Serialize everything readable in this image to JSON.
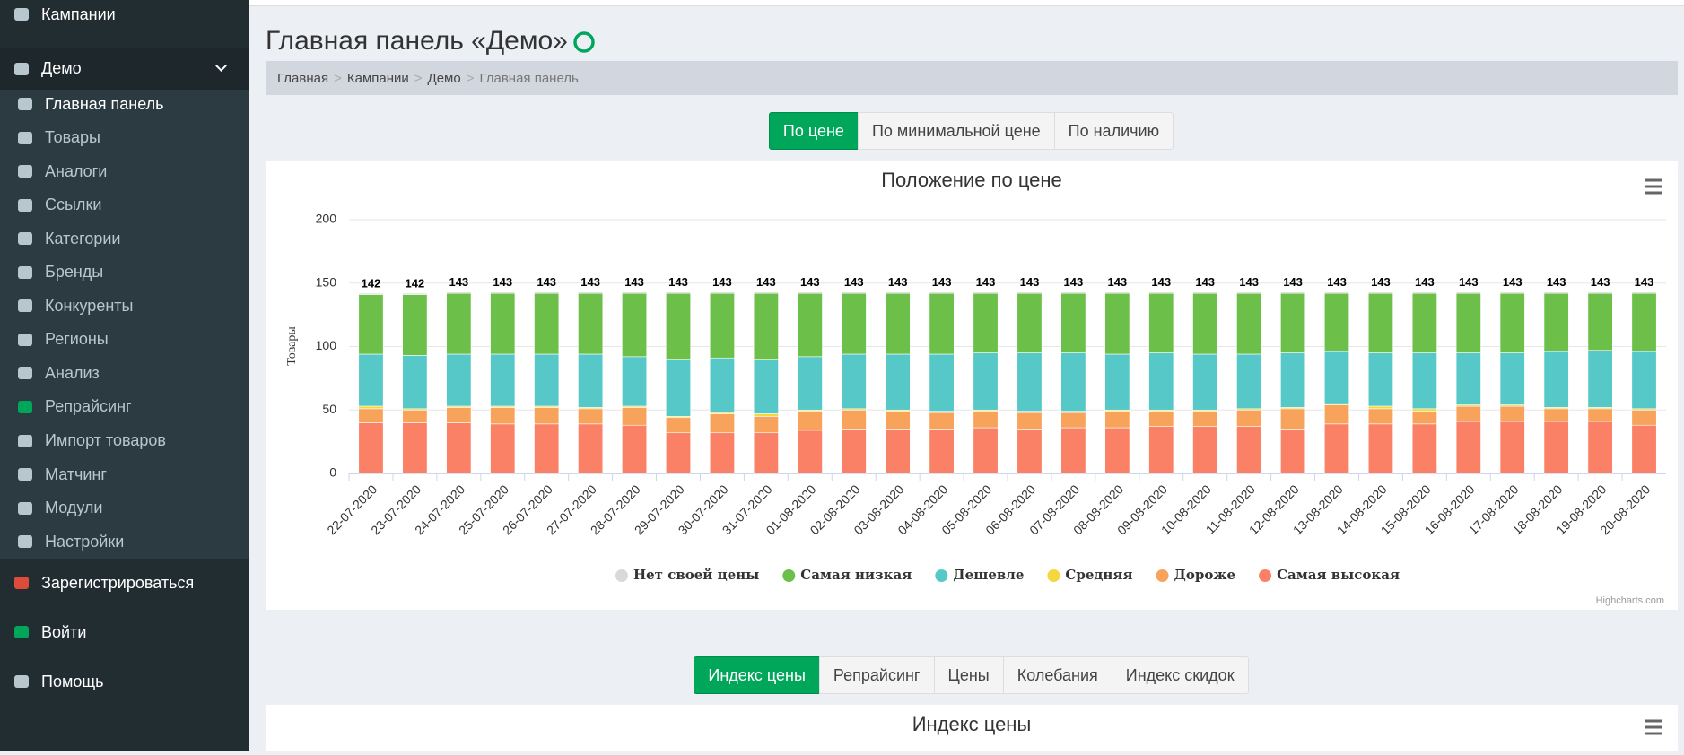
{
  "sidebar": {
    "top_item": "Кампании",
    "group": "Демо",
    "items": [
      "Главная панель",
      "Товары",
      "Аналоги",
      "Ссылки",
      "Категории",
      "Бренды",
      "Конкуренты",
      "Регионы",
      "Анализ",
      "Репрайсинг",
      "Импорт товаров",
      "Матчинг",
      "Модули",
      "Настройки"
    ],
    "bottom_items": [
      "Зарегистрироваться",
      "Войти",
      "Помощь"
    ]
  },
  "header": {
    "title": "Главная панель «Демо»"
  },
  "breadcrumb": {
    "items": [
      "Главная",
      "Кампании",
      "Демо",
      "Главная панель"
    ],
    "separator": ">"
  },
  "tabs": [
    "По цене",
    "По минимальной цене",
    "По наличию"
  ],
  "chart_data": {
    "type": "bar",
    "stacked": true,
    "title": "Положение по цене",
    "y_label": "Товары",
    "categories": [
      "22-07-2020",
      "23-07-2020",
      "24-07-2020",
      "25-07-2020",
      "26-07-2020",
      "27-07-2020",
      "28-07-2020",
      "29-07-2020",
      "30-07-2020",
      "31-07-2020",
      "01-08-2020",
      "02-08-2020",
      "03-08-2020",
      "04-08-2020",
      "05-08-2020",
      "06-08-2020",
      "07-08-2020",
      "08-08-2020",
      "09-08-2020",
      "10-08-2020",
      "11-08-2020",
      "12-08-2020",
      "13-08-2020",
      "14-08-2020",
      "15-08-2020",
      "16-08-2020",
      "17-08-2020",
      "18-08-2020",
      "19-08-2020",
      "20-08-2020"
    ],
    "series": [
      {
        "name": "Нет своей цены",
        "color": "#d9d9d9",
        "values": [
          1,
          1,
          1,
          1,
          1,
          1,
          1,
          1,
          1,
          1,
          1,
          1,
          1,
          1,
          1,
          1,
          1,
          1,
          1,
          1,
          1,
          1,
          1,
          1,
          1,
          1,
          1,
          1,
          1,
          1
        ]
      },
      {
        "name": "Самая низкая",
        "color": "#6cc04a",
        "values": [
          47,
          48,
          48,
          48,
          48,
          48,
          50,
          52,
          51,
          52,
          50,
          48,
          48,
          48,
          47,
          47,
          47,
          48,
          47,
          48,
          48,
          47,
          46,
          47,
          47,
          47,
          47,
          46,
          45,
          46
        ]
      },
      {
        "name": "Дешевле",
        "color": "#56c8c8",
        "values": [
          41,
          42,
          41,
          41,
          41,
          42,
          39,
          45,
          43,
          43,
          42,
          43,
          44,
          45,
          45,
          46,
          46,
          44,
          45,
          44,
          43,
          43,
          41,
          42,
          44,
          41,
          41,
          44,
          45,
          45
        ]
      },
      {
        "name": "Средняя",
        "color": "#f5d63d",
        "values": [
          2,
          1,
          1,
          1,
          1,
          1,
          1,
          1,
          1,
          2,
          1,
          1,
          1,
          1,
          1,
          1,
          1,
          1,
          1,
          1,
          1,
          1,
          1,
          2,
          2,
          1,
          1,
          1,
          1,
          1
        ]
      },
      {
        "name": "Дороже",
        "color": "#f7a35c",
        "values": [
          11,
          10,
          12,
          13,
          13,
          12,
          14,
          12,
          15,
          13,
          15,
          15,
          14,
          13,
          13,
          13,
          12,
          13,
          12,
          12,
          13,
          16,
          15,
          12,
          10,
          12,
          12,
          10,
          10,
          12
        ]
      },
      {
        "name": "Самая высокая",
        "color": "#fa8066",
        "values": [
          40,
          40,
          40,
          39,
          39,
          39,
          38,
          32,
          32,
          32,
          34,
          35,
          35,
          35,
          36,
          35,
          36,
          36,
          37,
          37,
          37,
          35,
          39,
          39,
          39,
          41,
          41,
          41,
          41,
          38
        ]
      }
    ],
    "stack_labels": [
      142,
      142,
      143,
      143,
      143,
      143,
      143,
      143,
      143,
      143,
      143,
      143,
      143,
      143,
      143,
      143,
      143,
      143,
      143,
      143,
      143,
      143,
      143,
      143,
      143,
      143,
      143,
      143,
      143,
      143
    ],
    "ylim": [
      0,
      200
    ],
    "yticks": [
      0,
      50,
      100,
      150,
      200
    ],
    "grid": true,
    "legend": "bottom"
  },
  "tabs2": [
    "Индекс цены",
    "Репрайсинг",
    "Цены",
    "Колебания",
    "Индекс скидок"
  ],
  "chart2": {
    "title": "Индекс цены"
  },
  "credit": "Highcharts.com"
}
